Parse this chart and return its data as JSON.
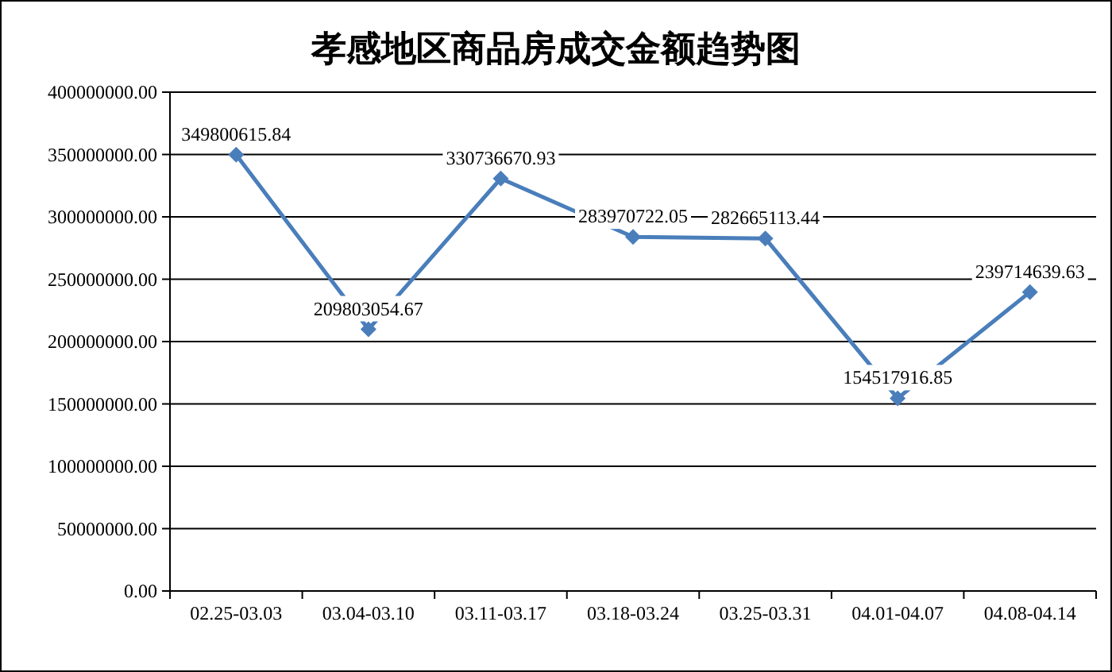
{
  "chart_data": {
    "type": "line",
    "title": "孝感地区商品房成交金额趋势图",
    "categories": [
      "02.25-03.03",
      "03.04-03.10",
      "03.11-03.17",
      "03.18-03.24",
      "03.25-03.31",
      "04.01-04.07",
      "04.08-04.14"
    ],
    "series": [
      {
        "color": "#4a7ebb",
        "values": [
          349800615.84,
          209803054.67,
          330736670.93,
          283970722.05,
          282665113.44,
          154517916.85,
          239714639.63
        ],
        "value_labels": [
          "349800615.84",
          "209803054.67",
          "330736670.93",
          "283970722.05",
          "282665113.44",
          "154517916.85",
          "239714639.63"
        ]
      }
    ],
    "ylim": [
      0,
      400000000
    ],
    "yticks": [
      {
        "value": 0,
        "label": "0.00"
      },
      {
        "value": 50000000,
        "label": "50000000.00"
      },
      {
        "value": 100000000,
        "label": "100000000.00"
      },
      {
        "value": 150000000,
        "label": "150000000.00"
      },
      {
        "value": 200000000,
        "label": "200000000.00"
      },
      {
        "value": 250000000,
        "label": "250000000.00"
      },
      {
        "value": 300000000,
        "label": "300000000.00"
      },
      {
        "value": 350000000,
        "label": "350000000.00"
      },
      {
        "value": 400000000,
        "label": "400000000.00"
      }
    ],
    "grid": "y",
    "marker": "diamond",
    "line_style": "solid"
  }
}
